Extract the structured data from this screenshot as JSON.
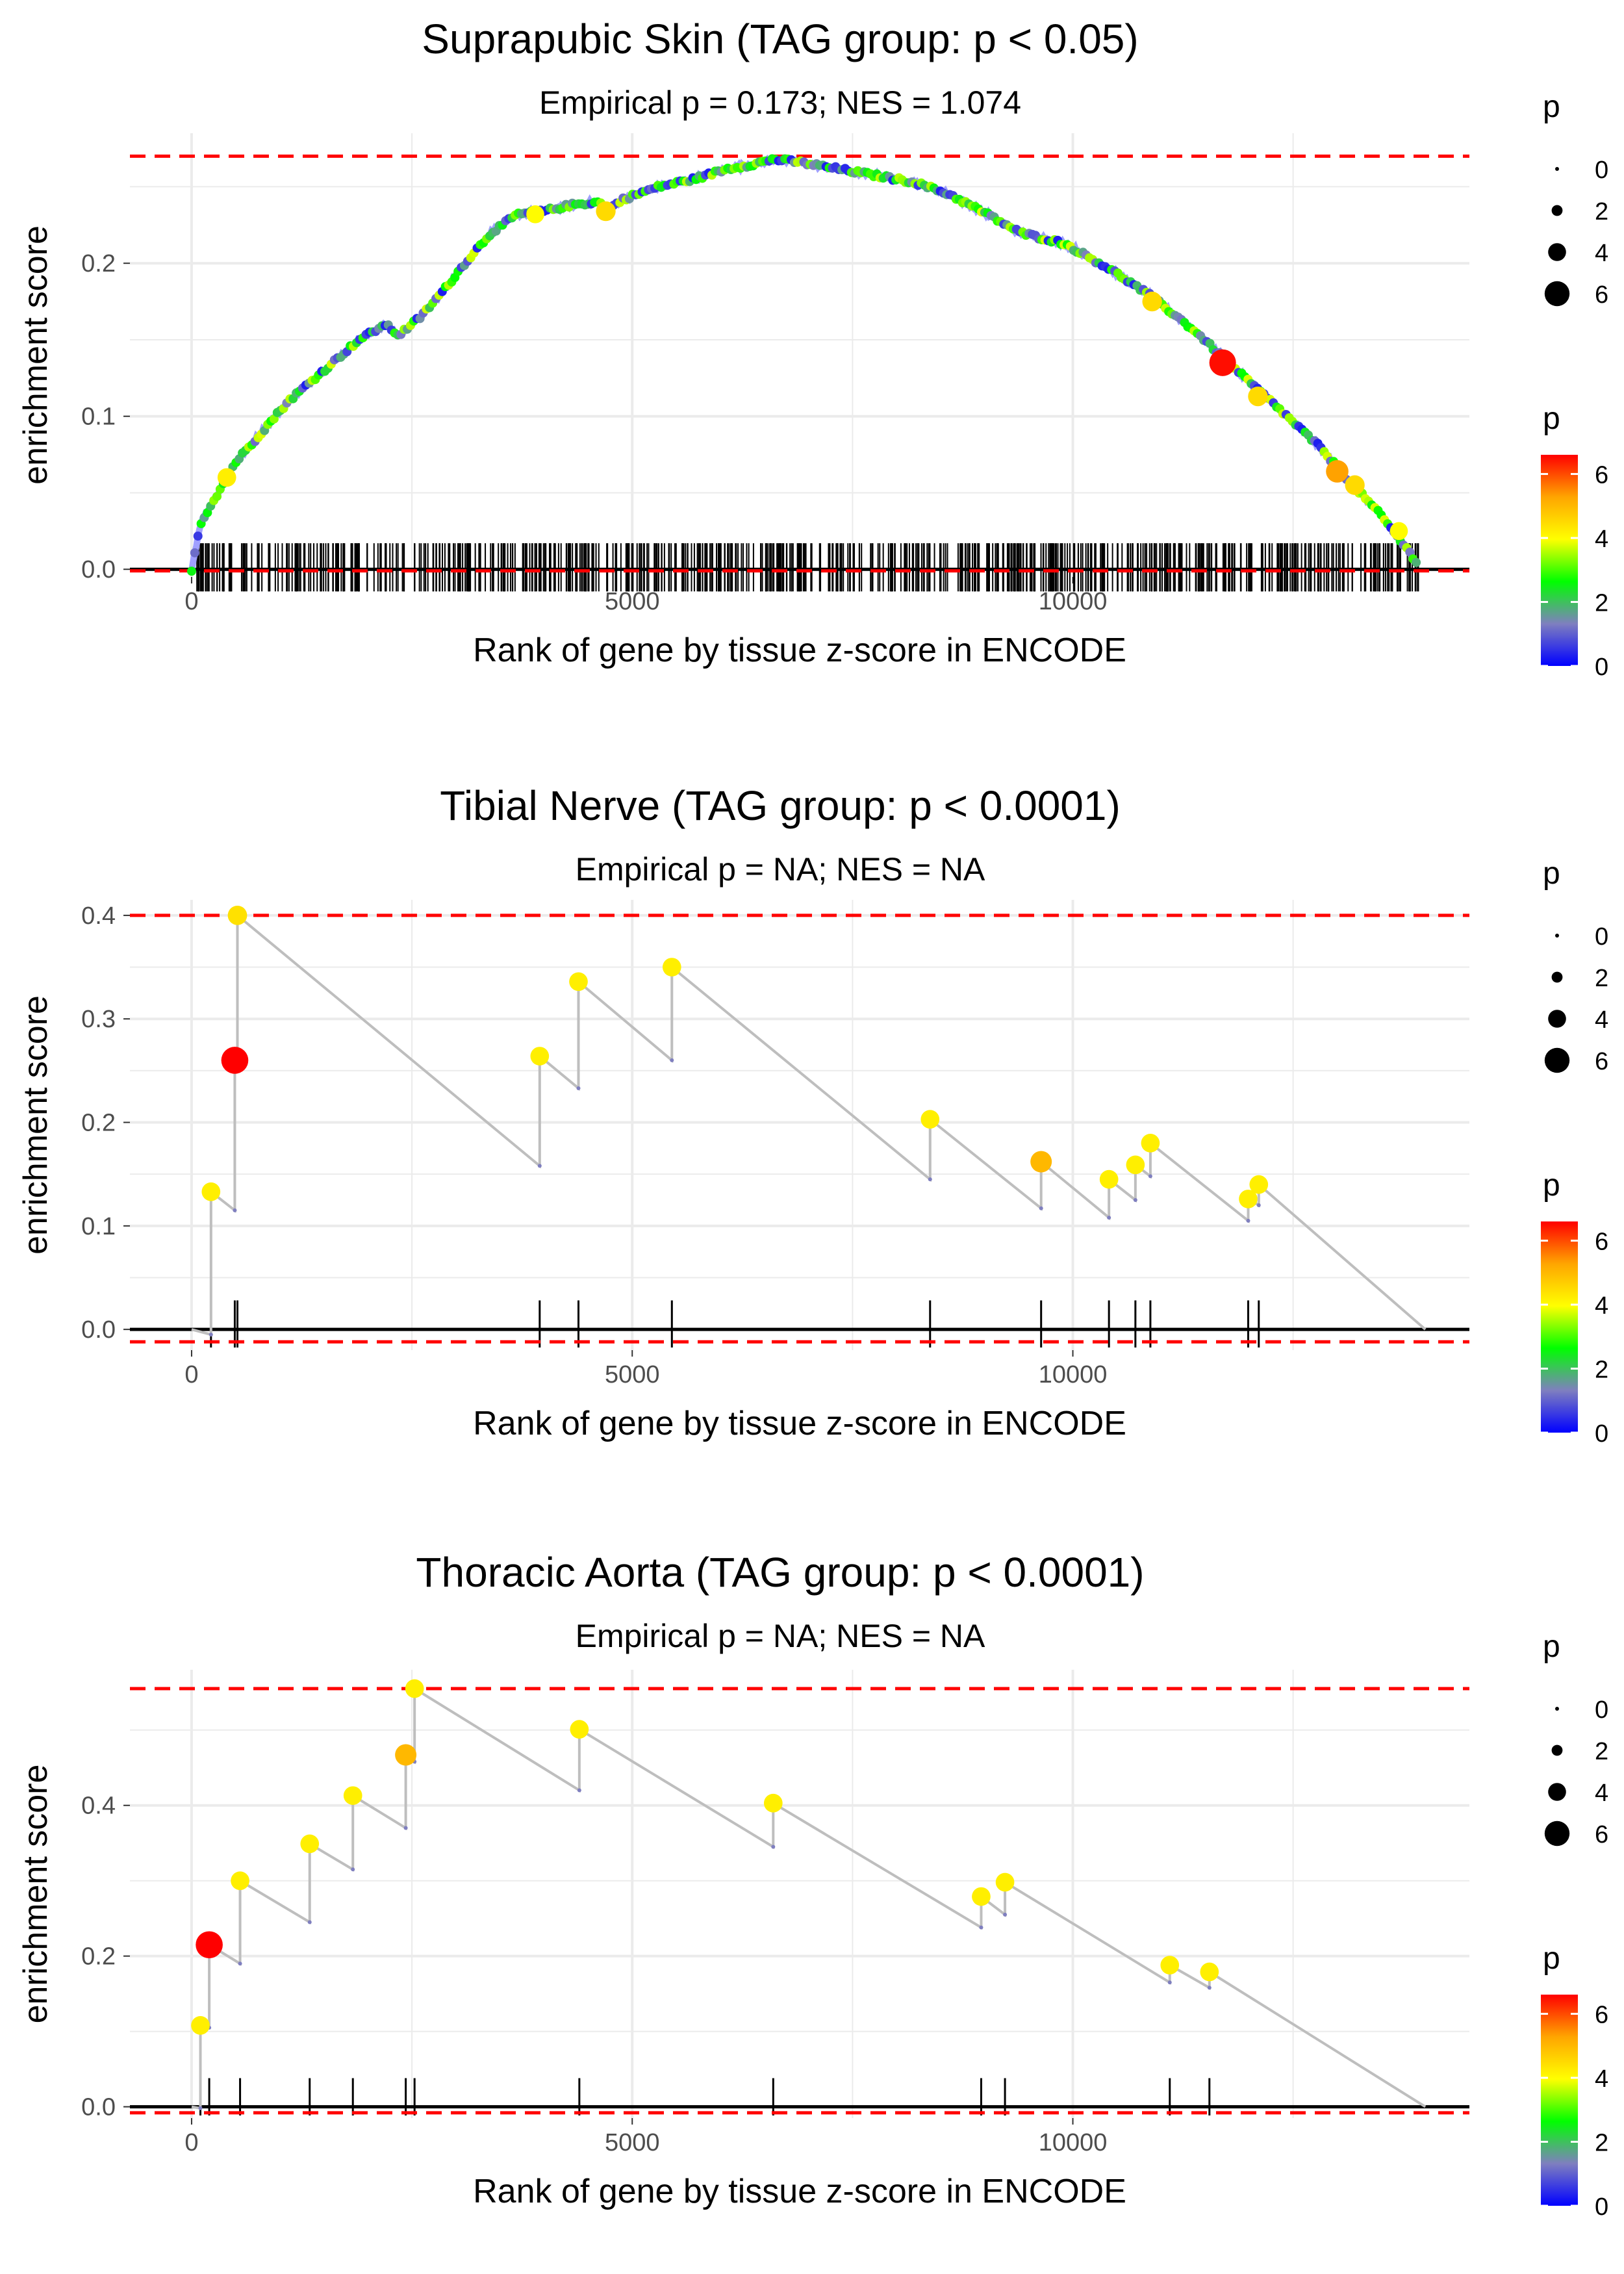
{
  "colors": {
    "colorbar_stops": [
      "#0000ff",
      "#7f7fbf",
      "#00ff00",
      "#ffff00",
      "#ffa500",
      "#ff0000"
    ],
    "refline": "#ff0000",
    "curve": "#bebebe",
    "grid": "#ebebeb",
    "zero_line": "#000000"
  },
  "chart_data": [
    {
      "type": "line",
      "title": "Suprapubic Skin (TAG group: p < 0.05)",
      "subtitle": "Empirical p = 0.173; NES = 1.074",
      "xlabel": "Rank of gene by tissue z-score in ENCODE",
      "ylabel": "enrichment score",
      "xlim": [
        -700,
        14500
      ],
      "ylim": [
        -0.005,
        0.285
      ],
      "xticks": [
        0,
        5000,
        10000
      ],
      "xtick_labels": [
        "0",
        "5000",
        "10000"
      ],
      "yticks": [
        0.0,
        0.1,
        0.2
      ],
      "ytick_labels": [
        "0.0",
        "0.1",
        "0.2"
      ],
      "max_es": 0.27,
      "min_es": -0.001,
      "rug_height": 0.017,
      "curve_anchors": [
        [
          0,
          0.0
        ],
        [
          100,
          0.03
        ],
        [
          300,
          0.05
        ],
        [
          500,
          0.07
        ],
        [
          800,
          0.09
        ],
        [
          1100,
          0.11
        ],
        [
          1500,
          0.13
        ],
        [
          1900,
          0.15
        ],
        [
          2200,
          0.16
        ],
        [
          2350,
          0.153
        ],
        [
          2600,
          0.165
        ],
        [
          2900,
          0.185
        ],
        [
          3100,
          0.2
        ],
        [
          3400,
          0.22
        ],
        [
          3700,
          0.232
        ],
        [
          4000,
          0.234
        ],
        [
          4300,
          0.238
        ],
        [
          4600,
          0.24
        ],
        [
          4750,
          0.236
        ],
        [
          4900,
          0.242
        ],
        [
          5300,
          0.25
        ],
        [
          5700,
          0.255
        ],
        [
          6100,
          0.262
        ],
        [
          6400,
          0.265
        ],
        [
          6600,
          0.268
        ],
        [
          6900,
          0.266
        ],
        [
          7300,
          0.262
        ],
        [
          7700,
          0.258
        ],
        [
          8200,
          0.253
        ],
        [
          8600,
          0.245
        ],
        [
          9000,
          0.233
        ],
        [
          9400,
          0.22
        ],
        [
          9900,
          0.213
        ],
        [
          10400,
          0.197
        ],
        [
          10900,
          0.178
        ],
        [
          11400,
          0.155
        ],
        [
          11800,
          0.133
        ],
        [
          12300,
          0.107
        ],
        [
          12800,
          0.08
        ],
        [
          13100,
          0.06
        ],
        [
          13500,
          0.035
        ],
        [
          13900,
          0.005
        ]
      ],
      "series_values_desc": "Points along the curve are colored yellow/green/grey by -log10 p; most genes have small p",
      "highlight_points": [
        [
          400,
          0.06,
          4.2
        ],
        [
          3900,
          0.232,
          4.0
        ],
        [
          4700,
          0.234,
          4.5
        ],
        [
          10900,
          0.175,
          4.5
        ],
        [
          11700,
          0.135,
          6.5
        ],
        [
          12100,
          0.113,
          4.5
        ],
        [
          13000,
          0.064,
          5.3
        ],
        [
          13200,
          0.055,
          4.5
        ],
        [
          13700,
          0.025,
          4.0
        ]
      ],
      "rug_count": 700,
      "legend": {
        "size_title": "p",
        "size_values": [
          0,
          2,
          4,
          6
        ],
        "color_title": "p",
        "color_ticks": [
          0,
          2,
          4,
          6
        ],
        "color_range": [
          0,
          6.6
        ]
      }
    },
    {
      "type": "line",
      "title": "Tibial Nerve (TAG group: p < 0.0001)",
      "subtitle": "Empirical p = NA; NES = NA",
      "xlabel": "Rank of gene by tissue z-score in ENCODE",
      "ylabel": "enrichment score",
      "xlim": [
        -700,
        14500
      ],
      "ylim": [
        -0.02,
        0.415
      ],
      "xticks": [
        0,
        5000,
        10000
      ],
      "xtick_labels": [
        "0",
        "5000",
        "10000"
      ],
      "yticks": [
        0.0,
        0.1,
        0.2,
        0.3,
        0.4
      ],
      "ytick_labels": [
        "0.0",
        "0.1",
        "0.2",
        "0.3",
        "0.4"
      ],
      "max_es": 0.4,
      "min_es": -0.012,
      "rug_height": 0.028,
      "total_genes": 14000,
      "hits": [
        {
          "rank": 220,
          "pre": -0.005,
          "es": 0.133,
          "p": 4.2
        },
        {
          "rank": 490,
          "pre": 0.115,
          "es": 0.26,
          "p": 6.6
        },
        {
          "rank": 520,
          "pre": 0.258,
          "es": 0.4,
          "p": 4.4
        },
        {
          "rank": 3950,
          "pre": 0.158,
          "es": 0.264,
          "p": 4.2
        },
        {
          "rank": 4390,
          "pre": 0.233,
          "es": 0.336,
          "p": 4.2
        },
        {
          "rank": 5450,
          "pre": 0.26,
          "es": 0.35,
          "p": 4.2
        },
        {
          "rank": 8380,
          "pre": 0.145,
          "es": 0.203,
          "p": 4.2
        },
        {
          "rank": 9640,
          "pre": 0.117,
          "es": 0.162,
          "p": 5.0
        },
        {
          "rank": 10410,
          "pre": 0.108,
          "es": 0.145,
          "p": 4.2
        },
        {
          "rank": 10710,
          "pre": 0.125,
          "es": 0.159,
          "p": 4.2
        },
        {
          "rank": 10880,
          "pre": 0.148,
          "es": 0.18,
          "p": 4.2
        },
        {
          "rank": 11990,
          "pre": 0.105,
          "es": 0.126,
          "p": 4.2
        },
        {
          "rank": 12110,
          "pre": 0.12,
          "es": 0.14,
          "p": 4.2
        }
      ],
      "legend": {
        "size_title": "p",
        "size_values": [
          0,
          2,
          4,
          6
        ],
        "color_title": "p",
        "color_ticks": [
          0,
          2,
          4,
          6
        ],
        "color_range": [
          0,
          6.6
        ]
      }
    },
    {
      "type": "line",
      "title": "Thoracic Aorta (TAG group: p < 0.0001)",
      "subtitle": "Empirical p = NA; NES = NA",
      "xlabel": "Rank of gene by tissue z-score in ENCODE",
      "ylabel": "enrichment score",
      "xlim": [
        -700,
        14500
      ],
      "ylim": [
        -0.015,
        0.58
      ],
      "xticks": [
        0,
        5000,
        10000
      ],
      "xtick_labels": [
        "0",
        "5000",
        "10000"
      ],
      "yticks": [
        0.0,
        0.2,
        0.4
      ],
      "ytick_labels": [
        "0.0",
        "0.2",
        "0.4"
      ],
      "max_es": 0.555,
      "min_es": -0.008,
      "rug_height": 0.038,
      "total_genes": 14000,
      "hits": [
        {
          "rank": 100,
          "pre": -0.002,
          "es": 0.108,
          "p": 4.2
        },
        {
          "rank": 200,
          "pre": 0.105,
          "es": 0.215,
          "p": 6.6
        },
        {
          "rank": 550,
          "pre": 0.19,
          "es": 0.3,
          "p": 4.2
        },
        {
          "rank": 1340,
          "pre": 0.245,
          "es": 0.349,
          "p": 4.2
        },
        {
          "rank": 1830,
          "pre": 0.315,
          "es": 0.413,
          "p": 4.2
        },
        {
          "rank": 2430,
          "pre": 0.37,
          "es": 0.467,
          "p": 5.0
        },
        {
          "rank": 2530,
          "pre": 0.458,
          "es": 0.555,
          "p": 4.2
        },
        {
          "rank": 4400,
          "pre": 0.42,
          "es": 0.501,
          "p": 4.2
        },
        {
          "rank": 6600,
          "pre": 0.345,
          "es": 0.403,
          "p": 4.2
        },
        {
          "rank": 8960,
          "pre": 0.238,
          "es": 0.279,
          "p": 4.2
        },
        {
          "rank": 9230,
          "pre": 0.255,
          "es": 0.298,
          "p": 4.2
        },
        {
          "rank": 11100,
          "pre": 0.165,
          "es": 0.188,
          "p": 4.2
        },
        {
          "rank": 11550,
          "pre": 0.158,
          "es": 0.179,
          "p": 4.2
        }
      ],
      "legend": {
        "size_title": "p",
        "size_values": [
          0,
          2,
          4,
          6
        ],
        "color_title": "p",
        "color_ticks": [
          0,
          2,
          4,
          6
        ],
        "color_range": [
          0,
          6.6
        ]
      }
    }
  ]
}
